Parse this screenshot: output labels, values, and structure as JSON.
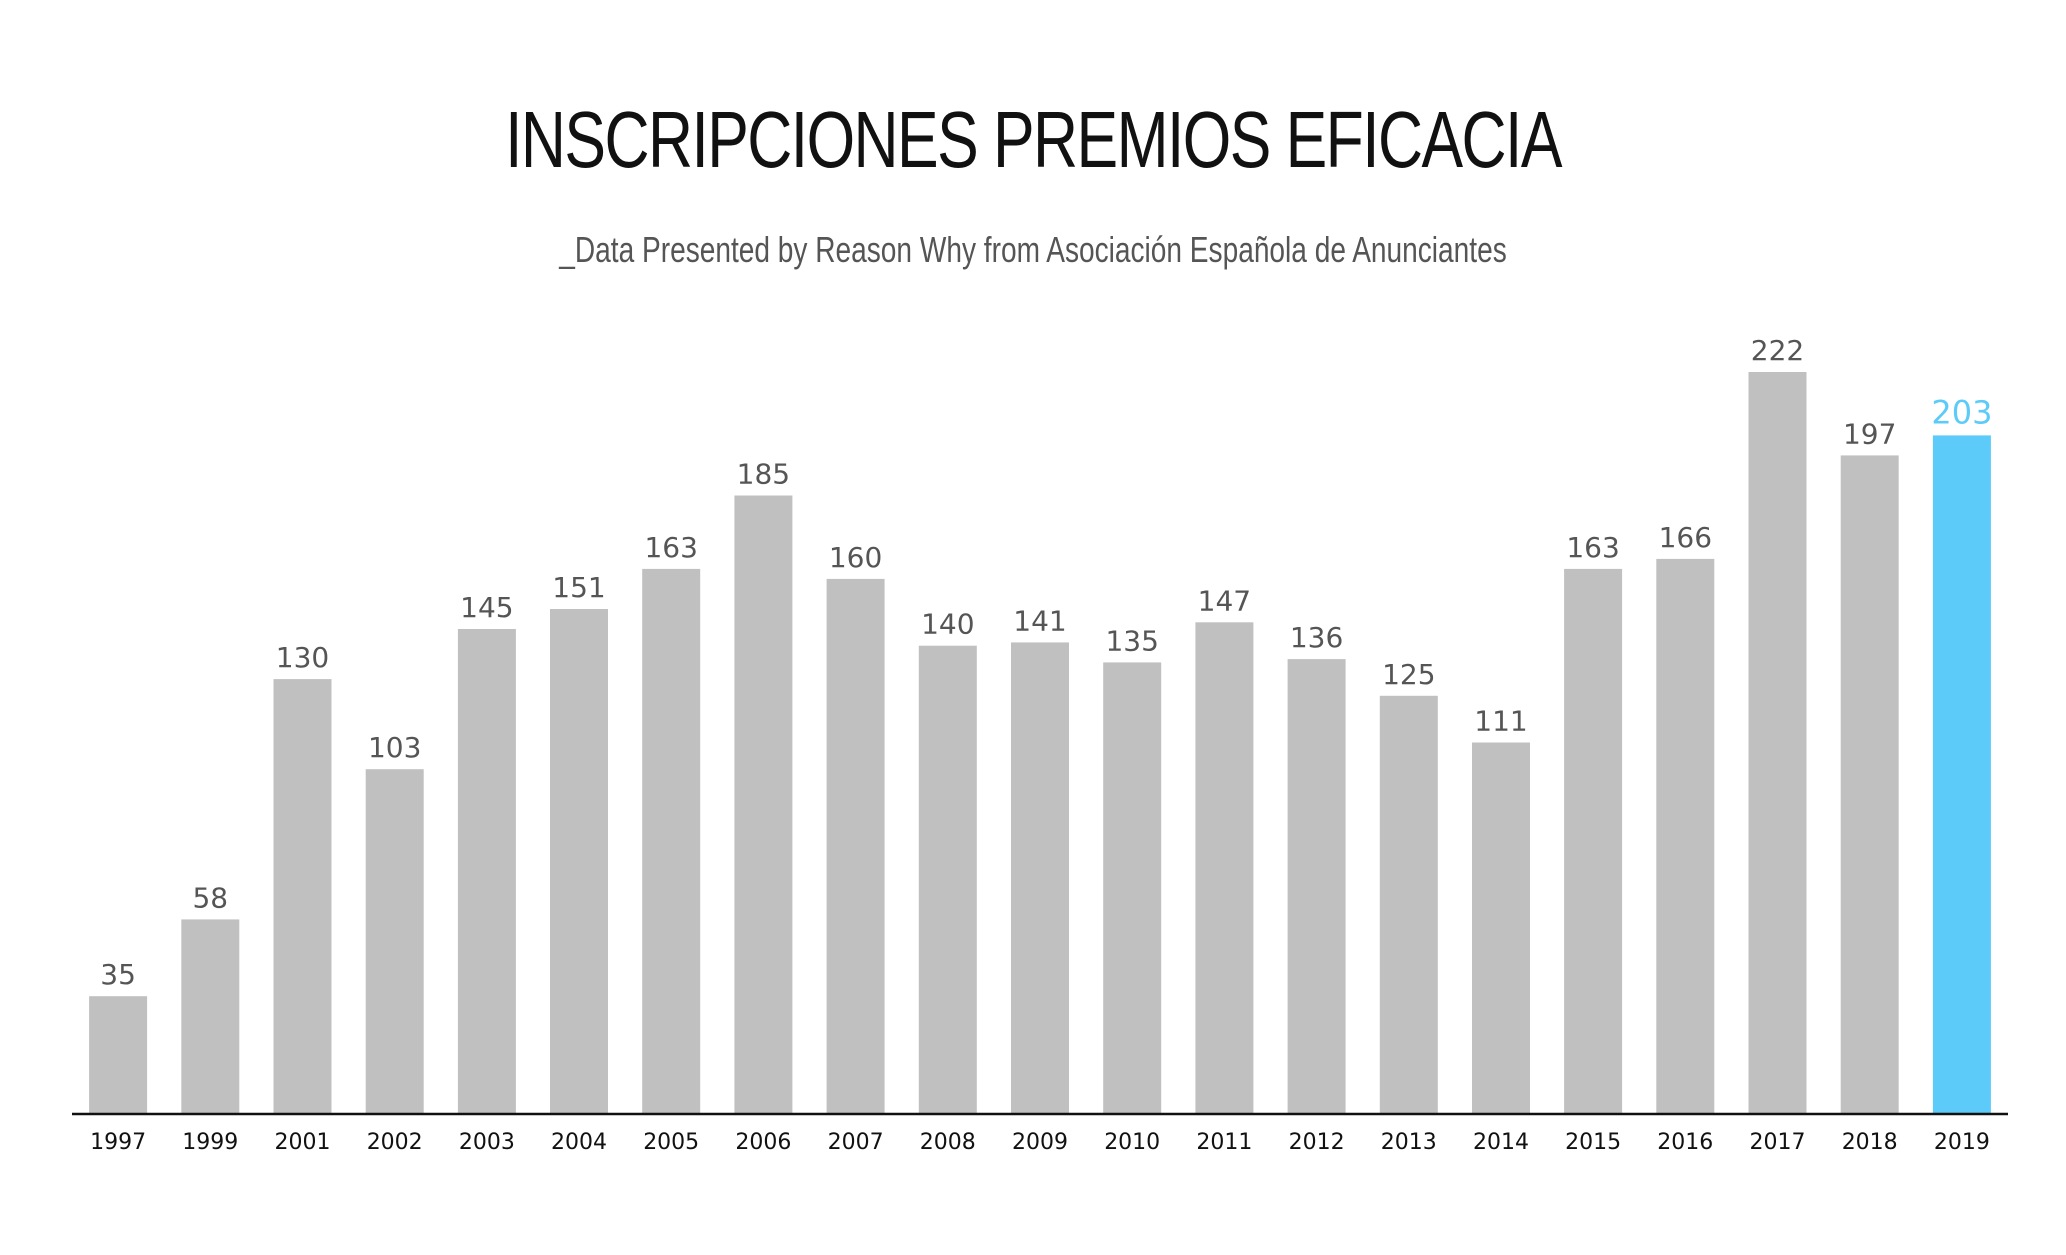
{
  "chart_data": {
    "type": "bar",
    "title": "INSCRIPCIONES PREMIOS EFICACIA",
    "subtitle": "_Data Presented by Reason Why from Asociación Española de Anunciantes",
    "categories": [
      "1997",
      "1999",
      "2001",
      "2002",
      "2003",
      "2004",
      "2005",
      "2006",
      "2007",
      "2008",
      "2009",
      "2010",
      "2011",
      "2012",
      "2013",
      "2014",
      "2015",
      "2016",
      "2017",
      "2018",
      "2019"
    ],
    "values": [
      35,
      58,
      130,
      103,
      145,
      151,
      163,
      185,
      160,
      140,
      141,
      135,
      147,
      136,
      125,
      111,
      163,
      166,
      222,
      197,
      203
    ],
    "highlight_category": "2019",
    "ylim": [
      0,
      222
    ],
    "grid": false,
    "xlabel": "",
    "ylabel": "",
    "colors": {
      "bar": "#c0c0c0",
      "highlight": "#5ccbf9",
      "axis": "#111111",
      "value_label": "#555555",
      "tick_label": "#111111"
    }
  }
}
